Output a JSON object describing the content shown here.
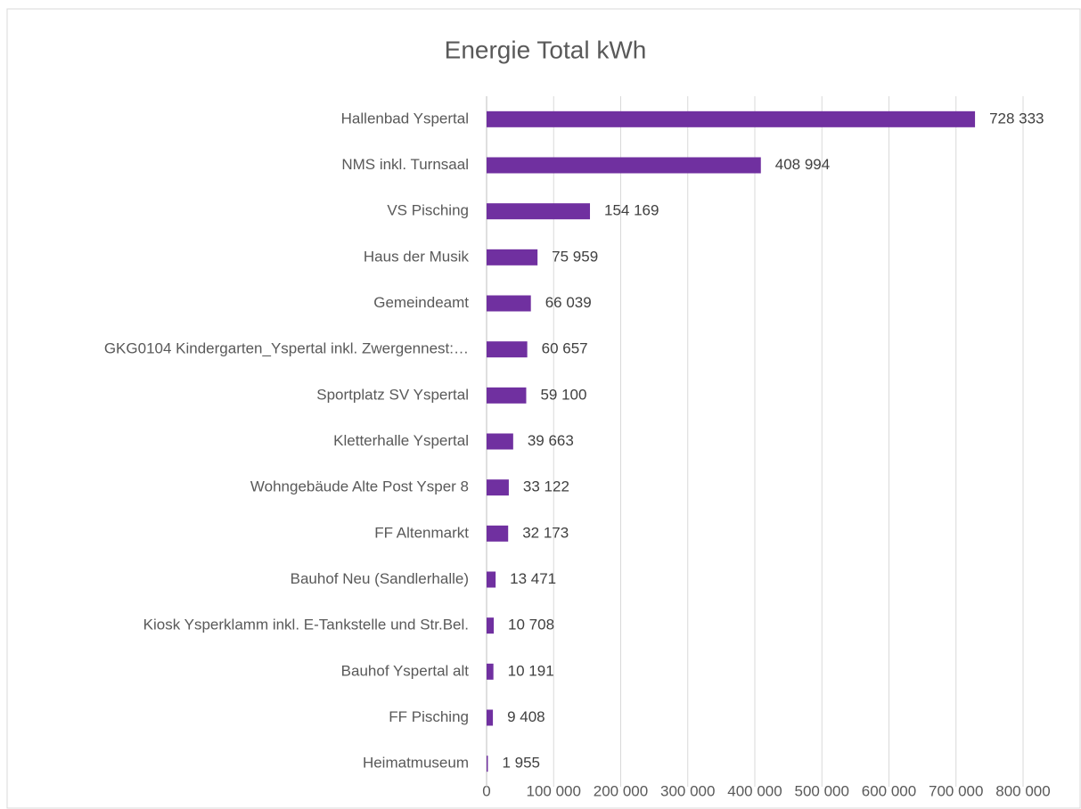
{
  "chart_data": {
    "type": "bar",
    "orientation": "horizontal",
    "title": "Energie Total kWh",
    "categories": [
      "Hallenbad Yspertal",
      "NMS inkl. Turnsaal",
      "VS Pisching",
      "Haus der Musik",
      "Gemeindeamt",
      "GKG0104 Kindergarten_Yspertal inkl. Zwergennest:…",
      "Sportplatz SV Yspertal",
      "Kletterhalle Yspertal",
      "Wohngebäude Alte Post Ysper 8",
      "FF Altenmarkt",
      "Bauhof Neu (Sandlerhalle)",
      "Kiosk Ysperklamm inkl. E-Tankstelle und Str.Bel.",
      "Bauhof Yspertal alt",
      "FF Pisching",
      "Heimatmuseum"
    ],
    "values": [
      728333,
      408994,
      154169,
      75959,
      66039,
      60657,
      59100,
      39663,
      33122,
      32173,
      13471,
      10708,
      10191,
      9408,
      1955
    ],
    "value_labels": [
      "728 333",
      "408 994",
      "154 169",
      "75 959",
      "66 039",
      "60 657",
      "59 100",
      "39 663",
      "33 122",
      "32 173",
      "13 471",
      "10 708",
      "10 191",
      "9 408",
      "1 955"
    ],
    "color": "#7030a0",
    "xlim": [
      0,
      800000
    ],
    "xticks": [
      0,
      {
        "value": 100000,
        "label": "100 000"
      },
      {
        "value": 200000,
        "label": "200 000"
      },
      {
        "value": 300000,
        "label": "300 000"
      },
      {
        "value": 400000,
        "label": "400 000"
      },
      {
        "value": 500000,
        "label": "500 000"
      },
      {
        "value": 600000,
        "label": "600 000"
      },
      {
        "value": 700000,
        "label": "700 000"
      },
      {
        "value": 800000,
        "label": "800 000"
      }
    ],
    "grid": true
  }
}
